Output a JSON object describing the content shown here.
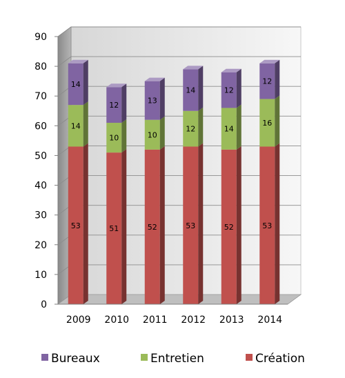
{
  "chart_data": {
    "type": "bar",
    "stacked": true,
    "style": "3d",
    "categories": [
      "2009",
      "2010",
      "2011",
      "2012",
      "2013",
      "2014"
    ],
    "series": [
      {
        "name": "Création",
        "color": "#C0504D",
        "values": [
          53,
          51,
          52,
          53,
          52,
          53
        ]
      },
      {
        "name": "Entretien",
        "color": "#9BBB59",
        "values": [
          14,
          10,
          10,
          12,
          14,
          16
        ]
      },
      {
        "name": "Bureaux",
        "color": "#8064A2",
        "values": [
          14,
          12,
          13,
          14,
          12,
          12
        ]
      }
    ],
    "ylim": [
      0,
      90
    ],
    "yticks": [
      0,
      10,
      20,
      30,
      40,
      50,
      60,
      70,
      80,
      90
    ],
    "grid": true,
    "legend_position": "bottom",
    "legend_order": [
      "Bureaux",
      "Entretien",
      "Création"
    ]
  }
}
